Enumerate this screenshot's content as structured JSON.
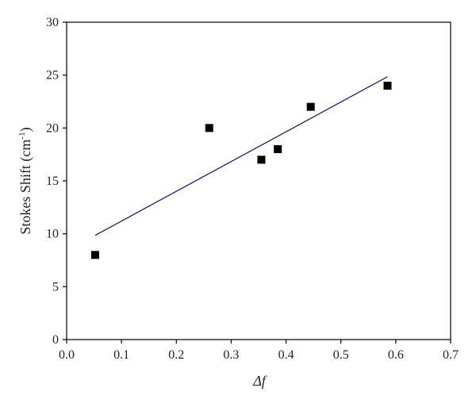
{
  "chart_data": {
    "type": "scatter",
    "xlabel": "Δf",
    "ylabel": "Stokes Shift (cm",
    "ylabel_sup": "-1",
    "ylabel_close": ")",
    "xlim": [
      0,
      0.7
    ],
    "ylim": [
      0,
      30
    ],
    "xticks": [
      0,
      0.1,
      0.2,
      0.3,
      0.4,
      0.5,
      0.6,
      0.7
    ],
    "xtick_labels": [
      "0.0",
      "0.1",
      "0.2",
      "0.3",
      "0.4",
      "0.5",
      "0.6",
      "0.7"
    ],
    "yticks": [
      0,
      5,
      10,
      15,
      20,
      25,
      30
    ],
    "ytick_labels": [
      "0",
      "5",
      "10",
      "15",
      "20",
      "25",
      "30"
    ],
    "grid": false,
    "series": [
      {
        "kind": "points",
        "marker": "square",
        "color": "#000000",
        "x": [
          0.052,
          0.26,
          0.355,
          0.385,
          0.445,
          0.585
        ],
        "y": [
          8,
          20,
          17,
          18,
          22,
          24
        ]
      },
      {
        "kind": "fit-line",
        "color": "#1f1f7a",
        "x": [
          0.052,
          0.585
        ],
        "y": [
          9.85,
          24.85
        ]
      }
    ]
  }
}
